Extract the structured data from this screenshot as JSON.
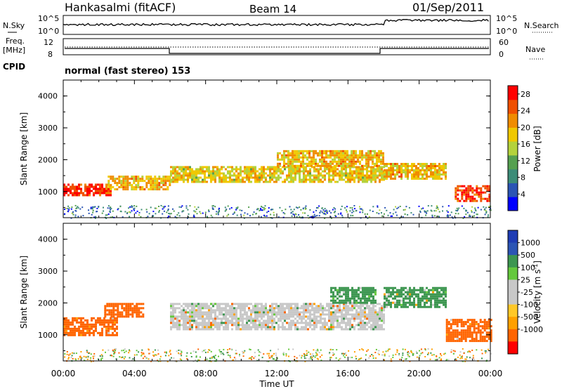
{
  "header": {
    "station": "Hankasalmi (fitACF)",
    "beam": "Beam 14",
    "date": "01/Sep/2011"
  },
  "side_labels": {
    "nsky": "N.Sky",
    "nsearch": "N.Search",
    "freq_line1": "Freq.",
    "freq_line2": "[MHz]",
    "nave": "Nave",
    "cpid": "CPID"
  },
  "noise_axis": {
    "ticks_left": [
      "10^5",
      "10^0"
    ],
    "ticks_right": [
      "10^5",
      "10^0"
    ]
  },
  "freq_axis": {
    "ticks_left": [
      "12",
      "8"
    ],
    "ticks_right": [
      "60",
      "0"
    ]
  },
  "cpid_text": "normal (fast stereo) 153",
  "colors": {
    "power_scale": [
      "#0000ff",
      "#2b55b4",
      "#3c8c78",
      "#55a050",
      "#b4d23c",
      "#f0c800",
      "#f08c00",
      "#f05000",
      "#ff0000"
    ],
    "velocity_scale": [
      "#ff0000",
      "#ff6400",
      "#ffa000",
      "#ffc828",
      "#c8c8c8",
      "#c8c8c8",
      "#64c83c",
      "#3c9650",
      "#2b55b4",
      "#1e3cb4"
    ]
  },
  "chart_data": [
    {
      "type": "heatmap",
      "panel": "power",
      "xlabel": "Time UT",
      "ylabel": "Slant Range [km]",
      "x_ticks": [
        "00:00",
        "04:00",
        "08:00",
        "12:00",
        "16:00",
        "20:00",
        "00:00"
      ],
      "x_range_hours": [
        0,
        24
      ],
      "y_ticks": [
        "1000",
        "2000",
        "3000",
        "4000"
      ],
      "y_range_km": [
        180,
        4500
      ],
      "colorbar": {
        "label": "Power [dB]",
        "ticks": [
          "4",
          "8",
          "12",
          "16",
          "20",
          "24",
          "28"
        ],
        "range": [
          0,
          30
        ]
      },
      "features": [
        {
          "hour_start": 0,
          "hour_end": 2.7,
          "range_start_km": 900,
          "range_end_km": 1250,
          "power_db": 28
        },
        {
          "hour_start": 2.5,
          "hour_end": 6,
          "range_start_km": 1050,
          "range_end_km": 1500,
          "power_db": 20
        },
        {
          "hour_start": 6,
          "hour_end": 18,
          "range_start_km": 1300,
          "range_end_km": 1800,
          "power_db": 18
        },
        {
          "hour_start": 12,
          "hour_end": 18,
          "range_start_km": 1800,
          "range_end_km": 2300,
          "power_db": 20
        },
        {
          "hour_start": 18,
          "hour_end": 21.5,
          "range_start_km": 1400,
          "range_end_km": 1900,
          "power_db": 20
        },
        {
          "hour_start": 22,
          "hour_end": 24,
          "range_start_km": 700,
          "range_end_km": 1200,
          "power_db": 28
        }
      ]
    },
    {
      "type": "heatmap",
      "panel": "velocity",
      "xlabel": "Time UT",
      "ylabel": "Slant Range [km]",
      "x_ticks": [
        "00:00",
        "04:00",
        "08:00",
        "12:00",
        "16:00",
        "20:00",
        "00:00"
      ],
      "x_range_hours": [
        0,
        24
      ],
      "y_ticks": [
        "1000",
        "2000",
        "3000",
        "4000"
      ],
      "y_range_km": [
        180,
        4500
      ],
      "colorbar": {
        "label": "Velocity [m s^-1]",
        "ticks": [
          "1000",
          "500",
          "100",
          "25",
          "-25",
          "-100",
          "-500",
          "-1000"
        ]
      },
      "features": [
        {
          "hour_start": 0,
          "hour_end": 3,
          "range_start_km": 1000,
          "range_end_km": 1550,
          "velocity_ms": -200
        },
        {
          "hour_start": 2.3,
          "hour_end": 4.5,
          "range_start_km": 1550,
          "range_end_km": 2000,
          "velocity_ms": -200
        },
        {
          "hour_start": 6,
          "hour_end": 18,
          "range_start_km": 1200,
          "range_end_km": 2000,
          "velocity_ms": 0
        },
        {
          "hour_start": 15,
          "hour_end": 17.5,
          "range_start_km": 2000,
          "range_end_km": 2500,
          "velocity_ms": 100
        },
        {
          "hour_start": 18,
          "hour_end": 21.5,
          "range_start_km": 1900,
          "range_end_km": 2500,
          "velocity_ms": 100
        },
        {
          "hour_start": 21.5,
          "hour_end": 24,
          "range_start_km": 800,
          "range_end_km": 1500,
          "velocity_ms": -200
        }
      ]
    }
  ]
}
